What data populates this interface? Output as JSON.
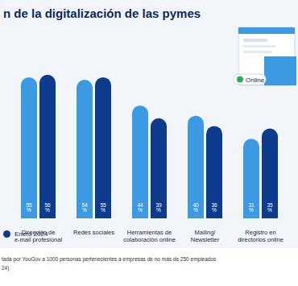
{
  "chart_data": {
    "type": "bar",
    "title": "n de la digitalización de las pymes",
    "categories": [
      "Dirección de e-mail profesional",
      "Redes sociales",
      "Herramientas de colaboración online",
      "Mailing/ Newsletter",
      "Registro en directorios online"
    ],
    "series": [
      {
        "color": "#3b9ae1",
        "values": [
          55,
          54,
          44,
          40,
          31
        ],
        "value_labels": [
          "55 %",
          "54 %",
          "44 %",
          "40 %",
          "31 %"
        ]
      },
      {
        "name": "Enero 2024",
        "color": "#0d3b8e",
        "values": [
          56,
          55,
          39,
          36,
          35
        ],
        "value_labels": [
          "56 %",
          "55 %",
          "39 %",
          "36 %",
          "35 %"
        ]
      }
    ],
    "ylim": [
      0,
      60
    ],
    "tick_labels": false,
    "grid": false,
    "data_labels": true,
    "legend": "bottom-left",
    "annotations": [
      "Online"
    ],
    "footnote": [
      "tada por YouGov a 1000 personas pertenecientes a empresas de no más de 250 empleados",
      "24)"
    ]
  }
}
